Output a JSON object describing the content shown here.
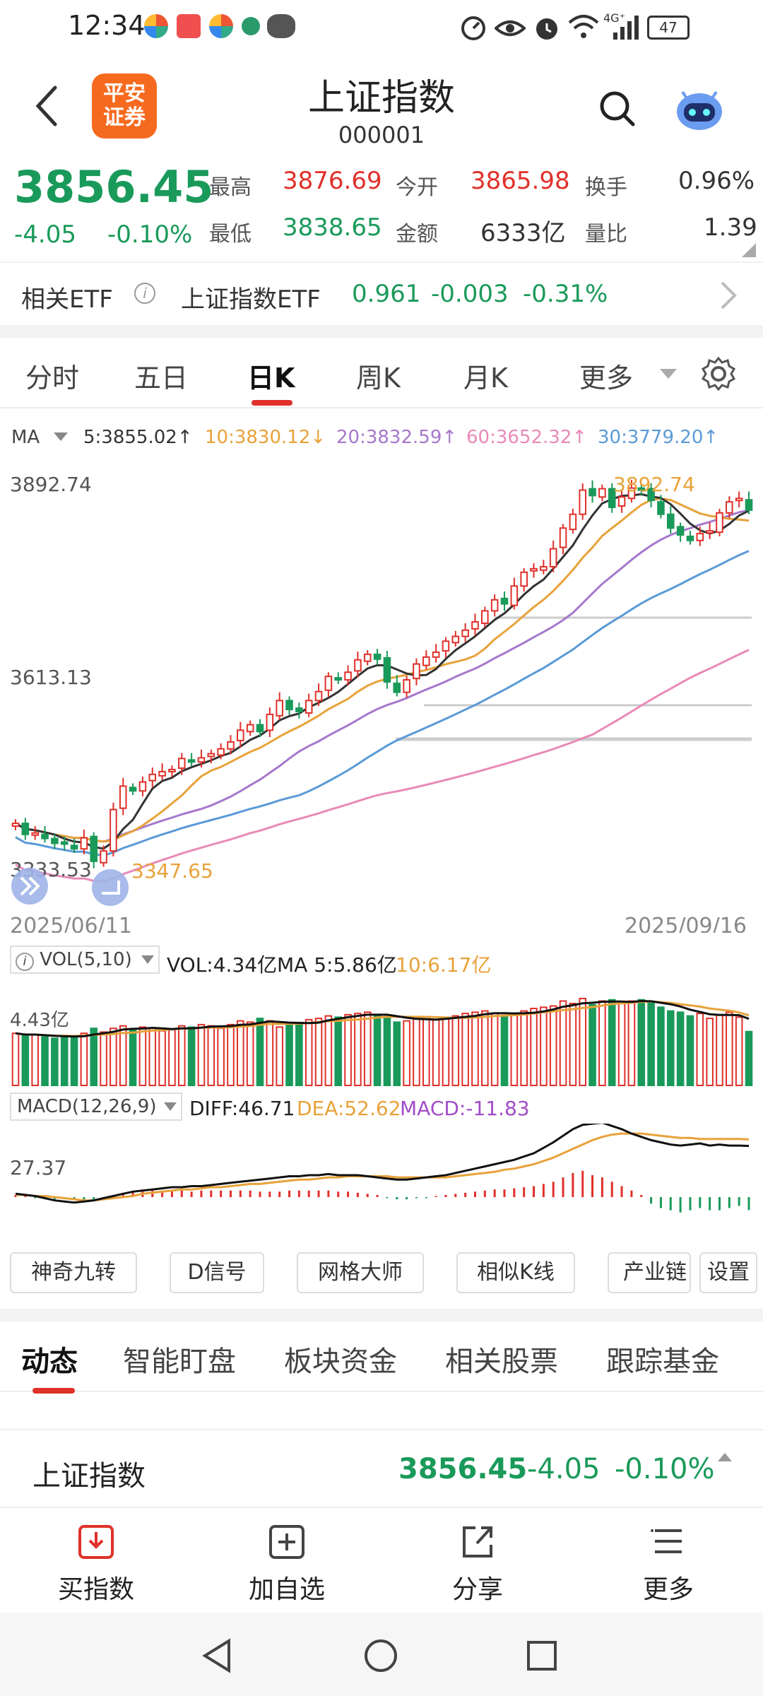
{
  "status_bar": {
    "time": "12:34",
    "network": "4G⁺",
    "battery": "47"
  },
  "header": {
    "logo_line1": "平安",
    "logo_line2": "证券",
    "title": "上证指数",
    "code": "000001"
  },
  "quote": {
    "price": "3856.45",
    "change": "-4.05",
    "change_pct": "-0.10%",
    "high_label": "最高",
    "high": "3876.69",
    "open_label": "今开",
    "open": "3865.98",
    "turnover_label": "换手",
    "turnover": "0.96%",
    "low_label": "最低",
    "low": "3838.65",
    "amount_label": "金额",
    "amount": "6333亿",
    "vol_ratio_label": "量比",
    "vol_ratio": "1.39"
  },
  "etf": {
    "label": "相关ETF",
    "name": "上证指数ETF",
    "price": "0.961",
    "change": "-0.003",
    "change_pct": "-0.31%"
  },
  "chart_tabs": [
    "分时",
    "五日",
    "日K",
    "周K",
    "月K",
    "更多"
  ],
  "active_chart_tab": "日K",
  "ma_legend": {
    "label": "MA",
    "ma5": "5:3855.02↑",
    "ma10": "10:3830.12↓",
    "ma20": "20:3832.59↑",
    "ma60": "60:3652.32↑",
    "ma30": "30:3779.20↑"
  },
  "colors": {
    "up": "#e0302a",
    "down": "#1a9a5a",
    "ma5": "#333333",
    "ma10": "#e8a23a",
    "ma20": "#a678cc",
    "ma60": "#e88ab8",
    "ma30": "#5a9ad6"
  },
  "chart_data": {
    "type": "candlestick",
    "price_axis_labels": [
      "3892.74",
      "3613.13",
      "3333.53"
    ],
    "y_top": 3892.74,
    "y_mid": 3613.13,
    "high_annotation": "3892.74",
    "low_annotation": "3347.65",
    "start_date": "2025/06/11",
    "end_date": "2025/09/16",
    "closes": [
      3402,
      3386,
      3388,
      3380,
      3373,
      3372,
      3365,
      3381,
      3347,
      3362,
      3422,
      3456,
      3449,
      3462,
      3473,
      3477,
      3480,
      3496,
      3491,
      3497,
      3503,
      3510,
      3520,
      3537,
      3545,
      3535,
      3560,
      3580,
      3567,
      3564,
      3580,
      3593,
      3615,
      3610,
      3621,
      3639,
      3647,
      3640,
      3607,
      3592,
      3610,
      3633,
      3643,
      3650,
      3666,
      3673,
      3682,
      3694,
      3710,
      3726,
      3720,
      3746,
      3766,
      3771,
      3774,
      3800,
      3830,
      3850,
      3885,
      3877,
      3887,
      3860,
      3875,
      3888,
      3885,
      3870,
      3850,
      3830,
      3820,
      3812,
      3822,
      3826,
      3852,
      3868,
      3873,
      3856
    ],
    "volume": {
      "label": "VOL(5,10)",
      "vol": "VOL:4.34亿",
      "ma5": "MA 5:5.86亿",
      "ma10": "10:6.17亿",
      "axis_label": "4.43亿",
      "values": [
        4.2,
        4.0,
        4.1,
        3.9,
        3.8,
        4.0,
        3.9,
        4.2,
        4.6,
        4.3,
        4.6,
        4.8,
        4.5,
        4.7,
        4.6,
        4.4,
        4.5,
        4.8,
        4.7,
        4.9,
        4.8,
        4.6,
        4.9,
        5.2,
        5.1,
        5.4,
        5.2,
        4.7,
        4.9,
        5.0,
        5.3,
        5.4,
        5.6,
        5.5,
        5.7,
        5.8,
        5.9,
        5.6,
        5.5,
        5.1,
        5.2,
        5.4,
        5.5,
        5.3,
        5.4,
        5.6,
        5.8,
        5.9,
        6.0,
        5.8,
        5.6,
        5.7,
        6.0,
        6.2,
        6.3,
        6.4,
        6.8,
        6.6,
        7.0,
        6.5,
        6.8,
        6.9,
        6.6,
        6.8,
        6.9,
        6.7,
        6.3,
        6.0,
        5.9,
        5.6,
        5.8,
        5.4,
        5.7,
        5.9,
        5.5,
        4.34
      ]
    },
    "macd": {
      "label": "MACD(12,26,9)",
      "diff": "DIFF:46.71",
      "dea": "DEA:52.62",
      "macd": "MACD:-11.83",
      "axis_label": "27.37",
      "bars": [
        2,
        1,
        -1,
        -2,
        -2,
        -1,
        -2,
        -3,
        -2,
        -1,
        2,
        4,
        5,
        5,
        6,
        6,
        6,
        6,
        5,
        6,
        6,
        6,
        6,
        6,
        6,
        5,
        5,
        5,
        6,
        6,
        6,
        6,
        6,
        5,
        5,
        4,
        3,
        2,
        -1,
        -2,
        -2,
        -1,
        -1,
        1,
        2,
        3,
        4,
        5,
        6,
        7,
        7,
        8,
        9,
        10,
        12,
        14,
        18,
        22,
        24,
        20,
        18,
        14,
        10,
        6,
        2,
        -6,
        -10,
        -12,
        -14,
        -12,
        -10,
        -12,
        -12,
        -10,
        -8,
        -11.83
      ],
      "diff_values": [
        3,
        2,
        1,
        -1,
        -3,
        -4,
        -5,
        -4,
        -3,
        -1,
        1,
        3,
        5,
        6,
        7,
        8,
        9,
        9,
        10,
        10,
        11,
        12,
        13,
        14,
        15,
        16,
        17,
        18,
        19,
        19,
        20,
        20,
        21,
        20,
        20,
        20,
        19,
        18,
        17,
        16,
        16,
        17,
        18,
        19,
        20,
        22,
        24,
        26,
        28,
        30,
        32,
        34,
        37,
        40,
        45,
        50,
        56,
        62,
        66,
        67,
        68,
        65,
        62,
        58,
        55,
        52,
        50,
        48,
        47,
        48,
        49,
        47,
        48,
        47,
        47,
        46.71
      ],
      "dea_values": [
        2,
        2,
        1,
        1,
        0,
        -1,
        -2,
        -3,
        -3,
        -2,
        -1,
        0,
        1,
        3,
        4,
        5,
        6,
        7,
        7,
        8,
        9,
        9,
        10,
        11,
        12,
        12,
        13,
        14,
        15,
        16,
        16,
        17,
        18,
        18,
        19,
        19,
        19,
        19,
        19,
        18,
        18,
        18,
        18,
        18,
        18,
        19,
        20,
        21,
        22,
        23,
        25,
        26,
        28,
        30,
        33,
        36,
        40,
        44,
        48,
        52,
        55,
        57,
        58,
        58,
        58,
        57,
        56,
        55,
        54,
        54,
        53,
        53,
        53,
        53,
        53,
        52.62
      ]
    }
  },
  "func_buttons": [
    "神奇九转",
    "D信号",
    "网格大师",
    "相似K线",
    "产业链",
    "设置"
  ],
  "news_tabs": [
    "动态",
    "智能盯盘",
    "板块资金",
    "相关股票",
    "跟踪基金"
  ],
  "active_news_tab": "动态",
  "bottom_quote": {
    "name": "上证指数",
    "price": "3856.45",
    "change": "-4.05",
    "change_pct": "-0.10%"
  },
  "actions": [
    {
      "label": "买指数",
      "icon": "download-icon"
    },
    {
      "label": "加自选",
      "icon": "add-watchlist-icon"
    },
    {
      "label": "分享",
      "icon": "share-icon"
    },
    {
      "label": "更多",
      "icon": "menu-icon"
    }
  ]
}
